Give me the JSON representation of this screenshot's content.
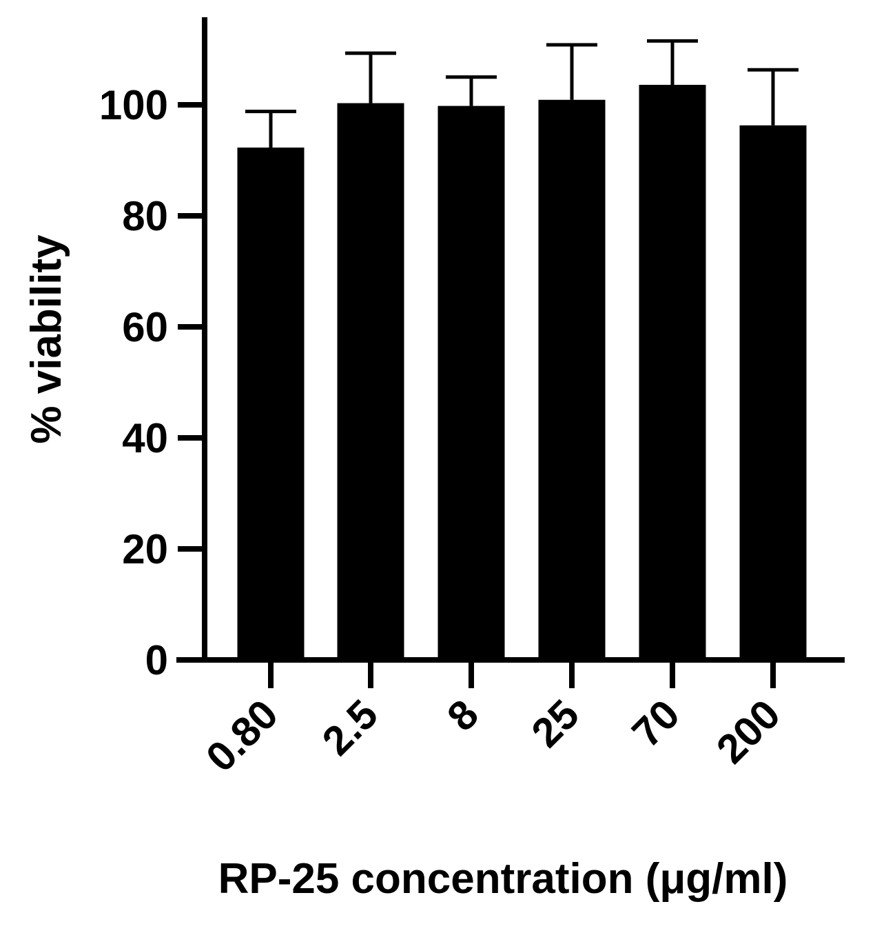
{
  "chart_data": {
    "type": "bar",
    "title": "",
    "xlabel": "RP-25 concentration (μg/ml)",
    "ylabel": "% viability",
    "categories": [
      "0.80",
      "2.5",
      "8",
      "25",
      "70",
      "200"
    ],
    "values": [
      92.3,
      100.3,
      99.8,
      100.9,
      103.6,
      96.3
    ],
    "error_upper": [
      6.5,
      9.0,
      5.2,
      9.9,
      7.9,
      10.0
    ],
    "ylim": [
      0,
      115
    ],
    "yticks": [
      0,
      20,
      40,
      60,
      80,
      100
    ],
    "ytick_labels": [
      "0",
      "20",
      "40",
      "60",
      "80",
      "100"
    ],
    "grid": false,
    "legend": "none",
    "bar_color": "#000000"
  }
}
